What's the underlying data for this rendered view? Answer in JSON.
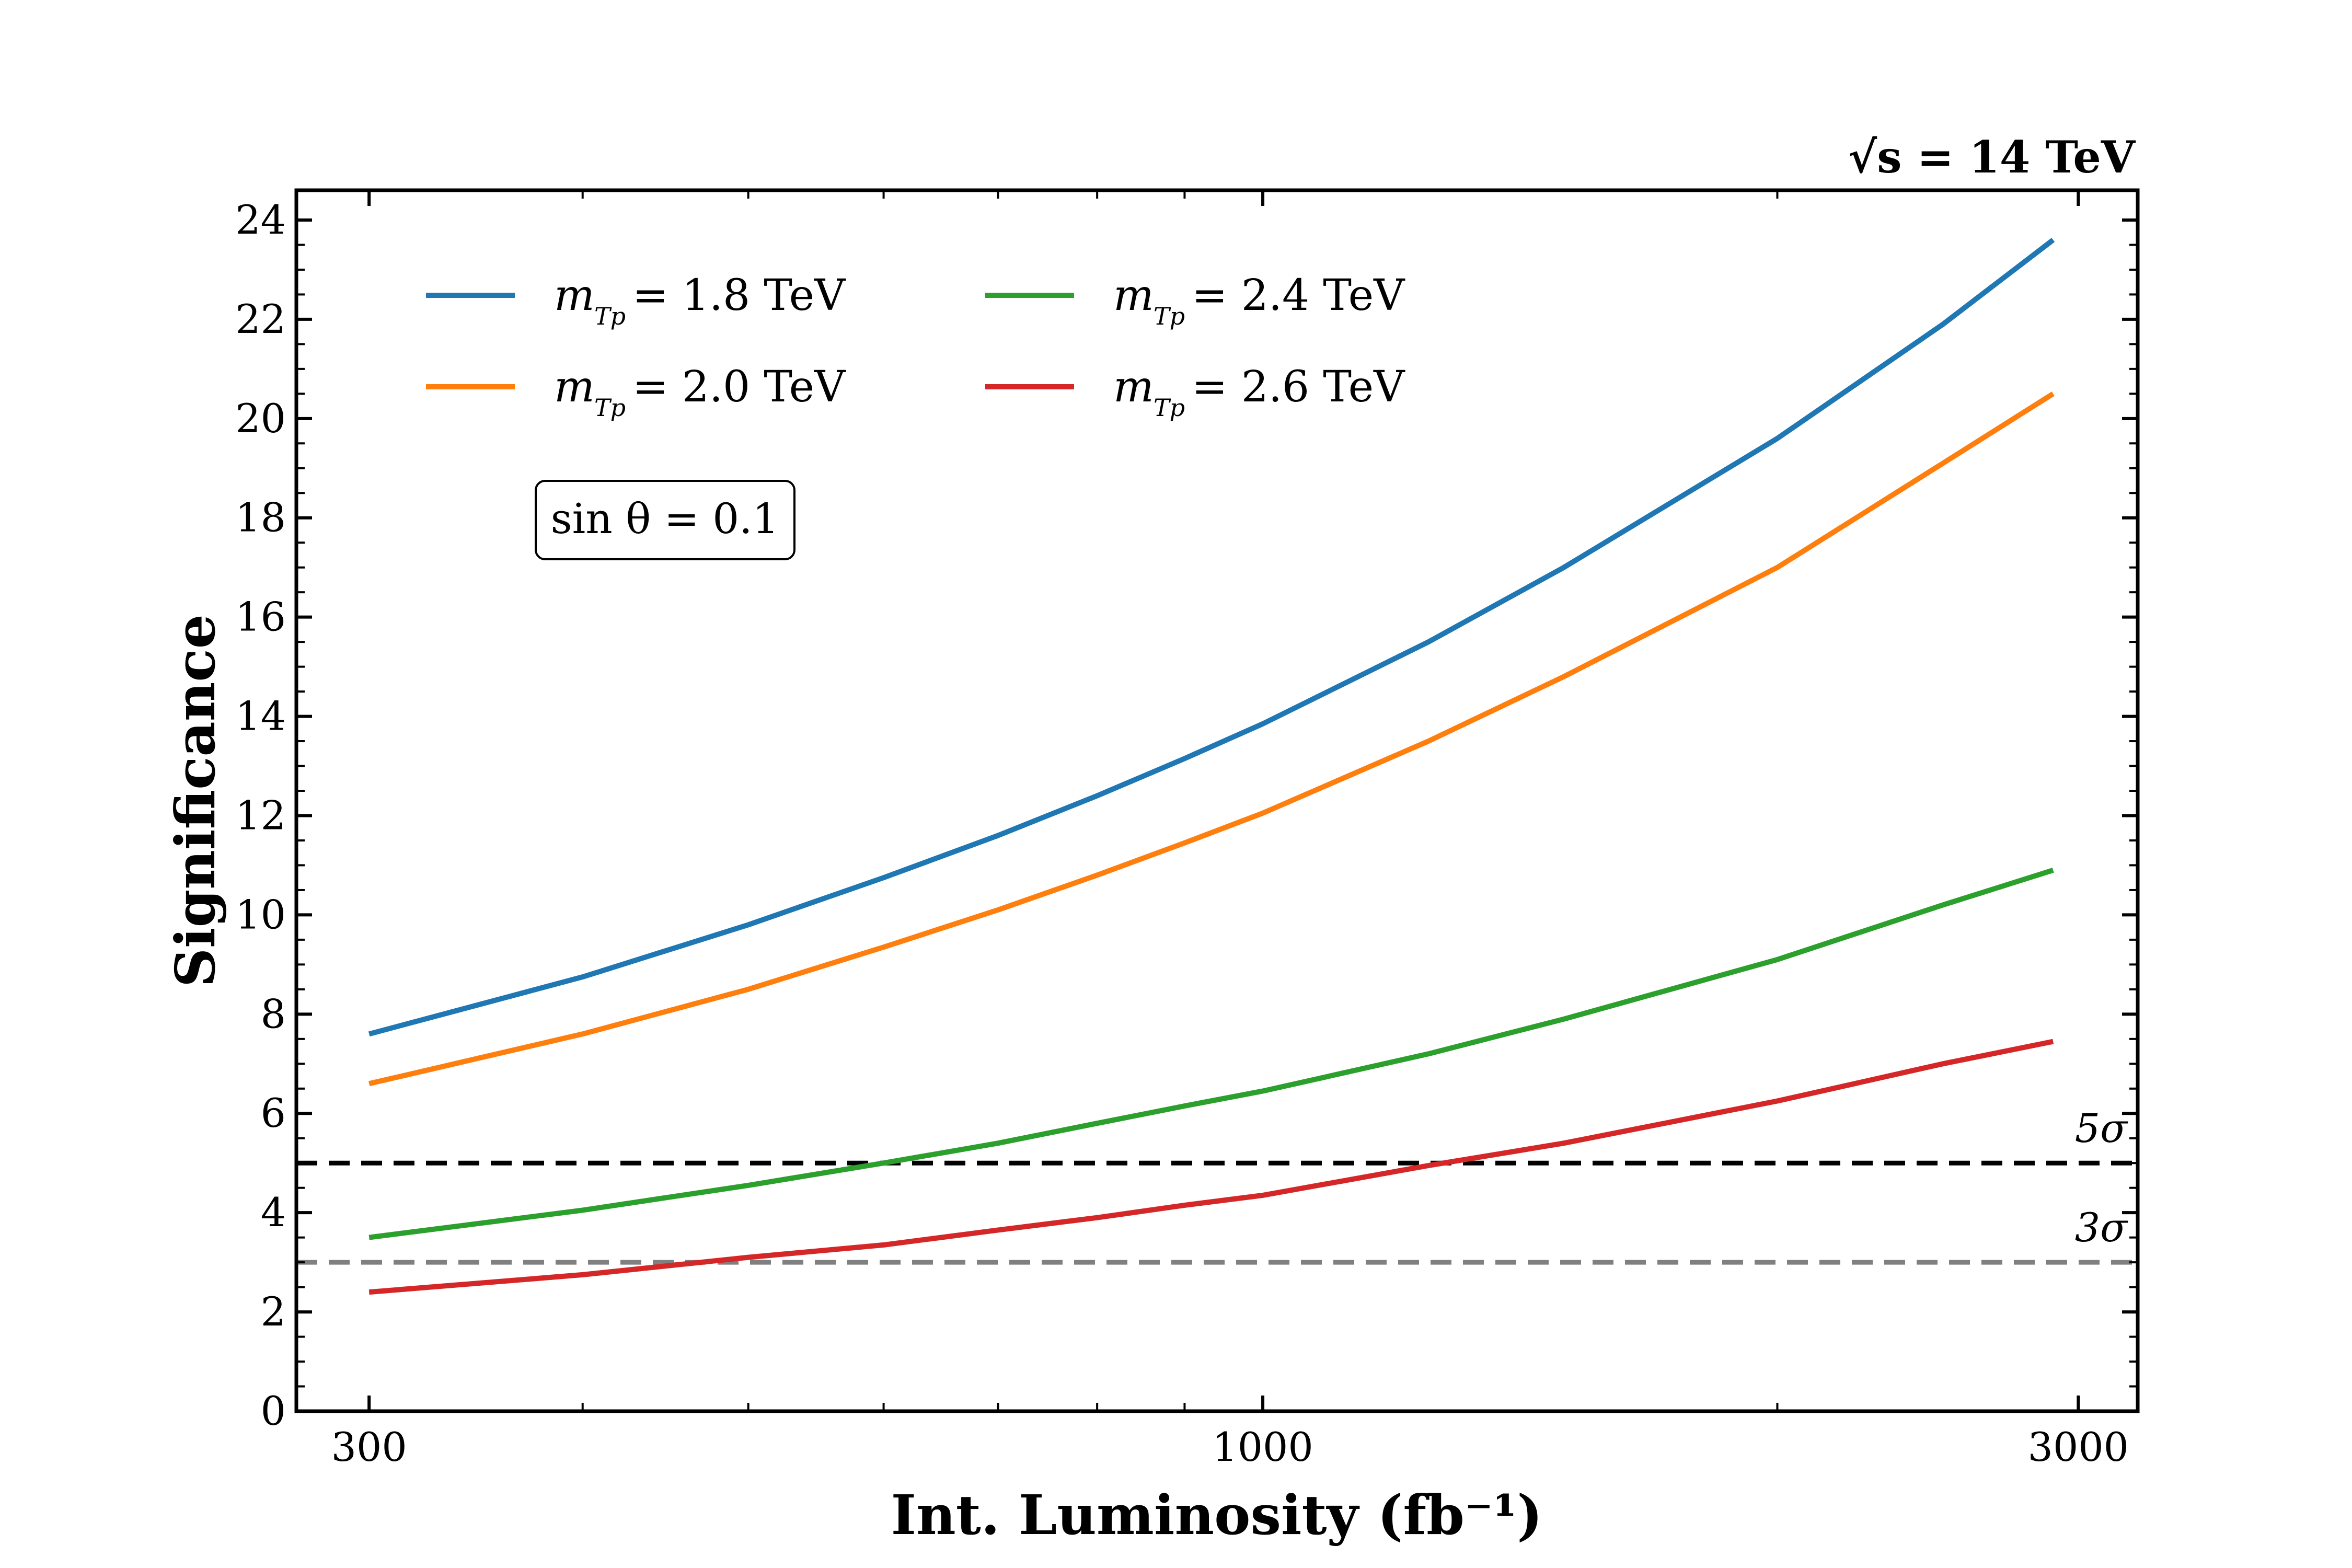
{
  "chart_data": {
    "type": "line",
    "title": "",
    "energy_label": "√s = 14 TeV",
    "xlabel": "Int. Luminosity  (fb⁻¹)",
    "ylabel": "Significance",
    "xscale": "log",
    "xlim": [
      272,
      3250
    ],
    "ylim": [
      0,
      24.6
    ],
    "x_ticks": [
      300,
      1000,
      3000
    ],
    "x_tick_labels": [
      "300",
      "1000",
      "3000"
    ],
    "y_ticks": [
      0,
      2,
      4,
      6,
      8,
      10,
      12,
      14,
      16,
      18,
      20,
      22,
      24
    ],
    "y_tick_labels": [
      "0",
      "2",
      "4",
      "6",
      "8",
      "10",
      "12",
      "14",
      "16",
      "18",
      "20",
      "22",
      "24"
    ],
    "x": [
      300,
      400,
      500,
      600,
      700,
      800,
      900,
      1000,
      1250,
      1500,
      2000,
      2500,
      2900
    ],
    "series": [
      {
        "name": "m_Tp = 1.8 TeV",
        "legend_label": "= 1.8 TeV",
        "color": "#1f77b4",
        "values": [
          7.6,
          8.75,
          9.8,
          10.75,
          11.6,
          12.4,
          13.15,
          13.85,
          15.5,
          17.0,
          19.6,
          21.9,
          23.6
        ]
      },
      {
        "name": "m_Tp = 2.0 TeV",
        "legend_label": "= 2.0 TeV",
        "color": "#ff7f0e",
        "values": [
          6.6,
          7.6,
          8.5,
          9.35,
          10.1,
          10.8,
          11.45,
          12.05,
          13.5,
          14.8,
          17.0,
          19.1,
          20.5
        ]
      },
      {
        "name": "m_Tp = 2.4 TeV",
        "legend_label": "= 2.4 TeV",
        "color": "#2ca02c",
        "values": [
          3.5,
          4.05,
          4.55,
          5.0,
          5.4,
          5.8,
          6.15,
          6.45,
          7.2,
          7.9,
          9.1,
          10.2,
          10.9
        ]
      },
      {
        "name": "m_Tp = 2.6 TeV",
        "legend_label": "= 2.6 TeV",
        "color": "#d62728",
        "values": [
          2.4,
          2.75,
          3.1,
          3.35,
          3.65,
          3.9,
          4.15,
          4.35,
          4.95,
          5.4,
          6.25,
          7.0,
          7.45
        ]
      }
    ],
    "reference_lines": [
      {
        "y": 5,
        "label": "5σ",
        "color": "#000000",
        "style": "dashed"
      },
      {
        "y": 3,
        "label": "3σ",
        "color": "#808080",
        "style": "dashed"
      }
    ],
    "annotation": "sin θ = 0.1",
    "legend": {
      "placement": "top-left",
      "columns": 2
    }
  }
}
